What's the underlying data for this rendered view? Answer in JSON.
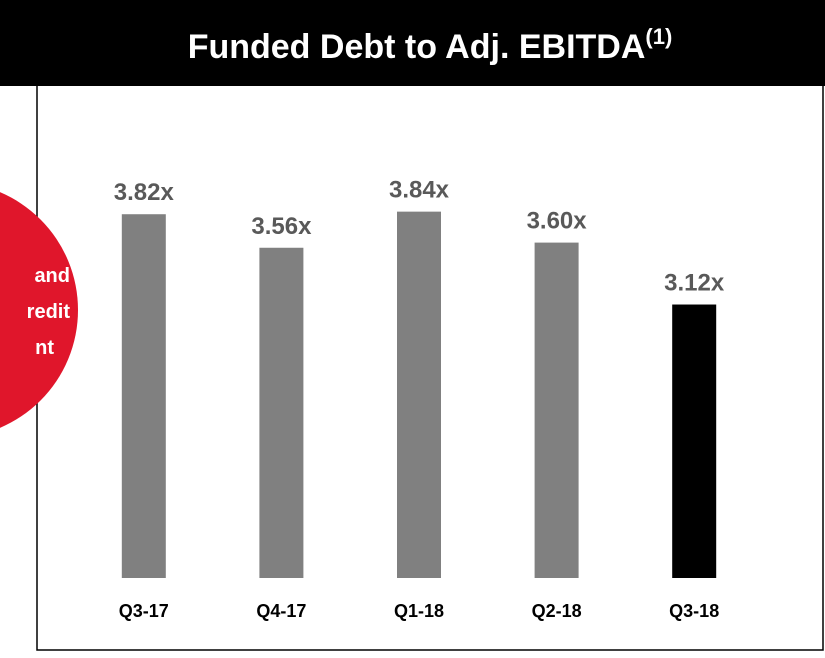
{
  "chart_data": {
    "type": "bar",
    "title": "Funded Debt to Adj. EBITDA",
    "title_note": "(1)",
    "side_text": [
      "and",
      "redit",
      "nt"
    ],
    "categories": [
      "Q3-17",
      "Q4-17",
      "Q1-18",
      "Q2-18",
      "Q3-18"
    ],
    "values": [
      3.82,
      3.56,
      3.84,
      3.6,
      3.12
    ],
    "value_labels": [
      "3.82x",
      "3.56x",
      "3.84x",
      "3.60x",
      "3.12x"
    ],
    "colors": [
      "#808080",
      "#808080",
      "#808080",
      "#808080",
      "#000000"
    ],
    "ylim": [
      1,
      4
    ]
  }
}
